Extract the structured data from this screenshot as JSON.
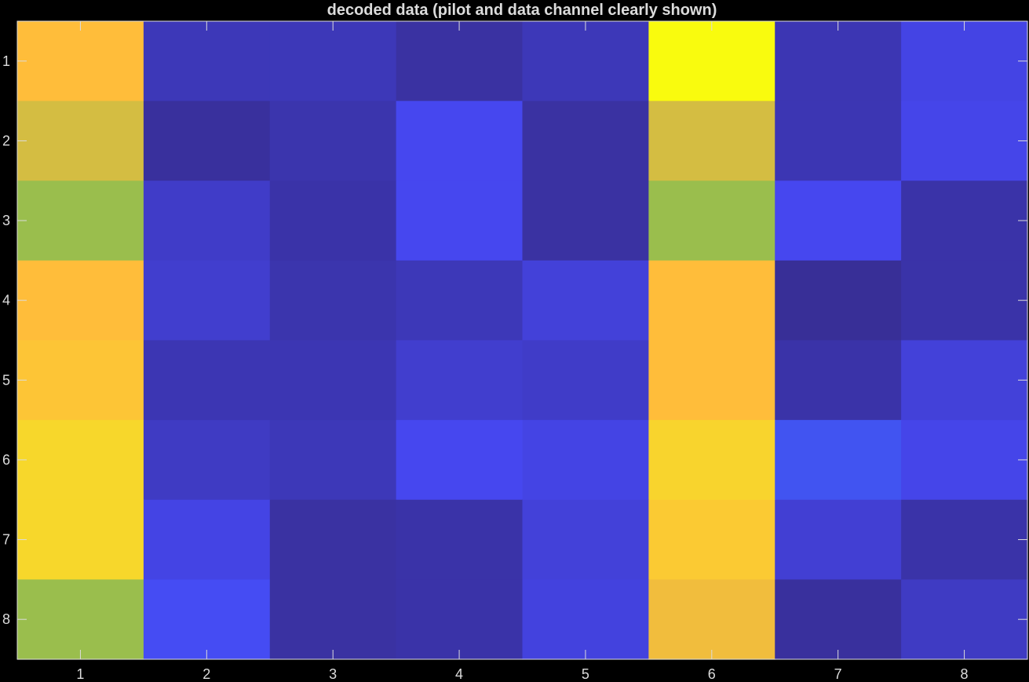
{
  "chart_data": {
    "type": "heatmap",
    "title": "decoded data (pilot and data channel clearly shown)",
    "xlabel": "",
    "ylabel": "",
    "x_ticks": [
      "1",
      "2",
      "3",
      "4",
      "5",
      "6",
      "7",
      "8"
    ],
    "y_ticks": [
      "1",
      "2",
      "3",
      "4",
      "5",
      "6",
      "7",
      "8"
    ],
    "colormap": "parula",
    "clim": [
      0,
      1
    ],
    "values": [
      [
        0.78,
        0.09,
        0.09,
        0.05,
        0.09,
        1.0,
        0.08,
        0.17
      ],
      [
        0.75,
        0.04,
        0.07,
        0.19,
        0.05,
        0.75,
        0.08,
        0.18
      ],
      [
        0.71,
        0.12,
        0.06,
        0.19,
        0.05,
        0.71,
        0.19,
        0.06
      ],
      [
        0.78,
        0.13,
        0.07,
        0.09,
        0.15,
        0.78,
        0.03,
        0.06
      ],
      [
        0.81,
        0.08,
        0.08,
        0.13,
        0.12,
        0.78,
        0.06,
        0.15
      ],
      [
        0.88,
        0.11,
        0.09,
        0.19,
        0.17,
        0.87,
        0.23,
        0.18
      ],
      [
        0.88,
        0.17,
        0.05,
        0.06,
        0.15,
        0.83,
        0.14,
        0.06
      ],
      [
        0.71,
        0.21,
        0.05,
        0.06,
        0.16,
        0.77,
        0.04,
        0.11
      ]
    ]
  },
  "colors": {
    "background": "#000000",
    "axis": "#dcdcdc",
    "text": "#dcdcdc"
  }
}
